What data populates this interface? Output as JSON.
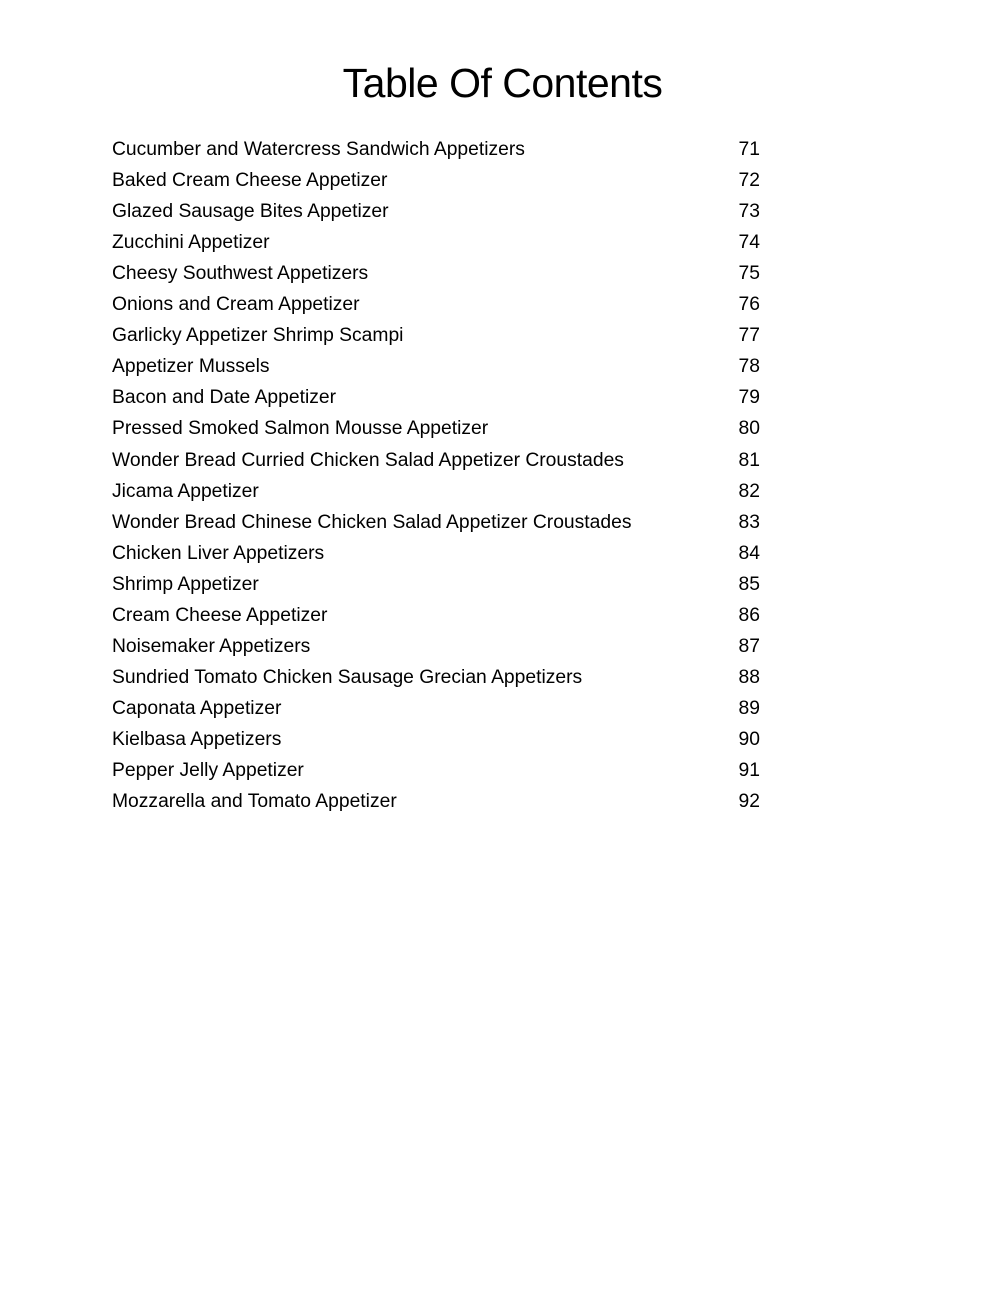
{
  "title": "Table Of Contents",
  "entries": [
    {
      "label": "Cucumber and Watercress Sandwich Appetizers",
      "page": "71"
    },
    {
      "label": "Baked Cream Cheese Appetizer",
      "page": "72"
    },
    {
      "label": "Glazed Sausage Bites Appetizer",
      "page": "73"
    },
    {
      "label": "Zucchini Appetizer",
      "page": "74"
    },
    {
      "label": "Cheesy Southwest Appetizers",
      "page": "75"
    },
    {
      "label": "Onions and Cream Appetizer",
      "page": "76"
    },
    {
      "label": "Garlicky Appetizer Shrimp Scampi",
      "page": "77"
    },
    {
      "label": "Appetizer Mussels",
      "page": "78"
    },
    {
      "label": "Bacon and Date Appetizer",
      "page": "79"
    },
    {
      "label": "Pressed Smoked Salmon Mousse Appetizer",
      "page": "80"
    },
    {
      "label": "Wonder Bread Curried Chicken Salad Appetizer Croustades",
      "page": "81"
    },
    {
      "label": "Jicama Appetizer",
      "page": "82"
    },
    {
      "label": "Wonder Bread Chinese Chicken Salad Appetizer Croustades",
      "page": "83"
    },
    {
      "label": "Chicken Liver Appetizers",
      "page": "84"
    },
    {
      "label": "Shrimp Appetizer",
      "page": "85"
    },
    {
      "label": "Cream Cheese Appetizer",
      "page": "86"
    },
    {
      "label": "Noisemaker Appetizers",
      "page": "87"
    },
    {
      "label": "Sundried Tomato Chicken Sausage Grecian Appetizers",
      "page": "88"
    },
    {
      "label": "Caponata Appetizer",
      "page": "89"
    },
    {
      "label": "Kielbasa Appetizers",
      "page": "90"
    },
    {
      "label": "Pepper Jelly Appetizer",
      "page": "91"
    },
    {
      "label": "Mozzarella and Tomato Appetizer",
      "page": "92"
    }
  ]
}
